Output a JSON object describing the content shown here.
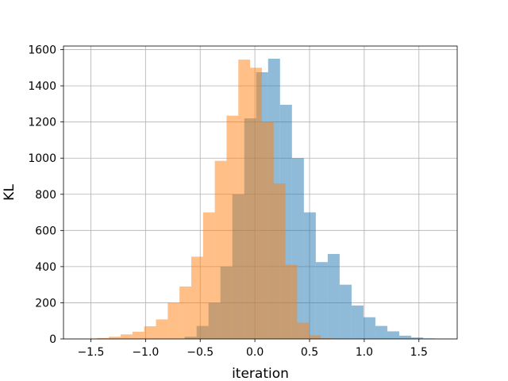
{
  "chart_data": {
    "type": "bar",
    "subtype": "overlaid-histogram",
    "title": "",
    "xlabel": "iteration",
    "ylabel": "KL",
    "xlim": [
      -1.75,
      1.85
    ],
    "ylim": [
      0,
      1620
    ],
    "xticks": [
      -1.5,
      -1.0,
      -0.5,
      0.0,
      0.5,
      1.0,
      1.5
    ],
    "xtick_labels": [
      "−1.5",
      "−1.0",
      "−0.5",
      "0.0",
      "0.5",
      "1.0",
      "1.5"
    ],
    "yticks": [
      0,
      200,
      400,
      600,
      800,
      1000,
      1200,
      1400,
      1600
    ],
    "ytick_labels": [
      "0",
      "200",
      "400",
      "600",
      "800",
      "1000",
      "1200",
      "1400",
      "1600"
    ],
    "grid": true,
    "alpha": 0.5,
    "series": [
      {
        "color": "#1f77b4",
        "bin_width": 0.109,
        "bin_start": -0.642,
        "counts": [
          12,
          72,
          200,
          400,
          800,
          1220,
          1475,
          1550,
          1295,
          1000,
          700,
          425,
          470,
          300,
          185,
          120,
          72,
          42,
          18,
          8,
          3
        ]
      },
      {
        "color": "#ff7f0e",
        "bin_width": 0.1076,
        "bin_start": -1.55,
        "counts": [
          2,
          5,
          12,
          25,
          40,
          70,
          108,
          200,
          290,
          455,
          700,
          985,
          1235,
          1545,
          1500,
          1200,
          860,
          410,
          90,
          20,
          4,
          1
        ]
      }
    ]
  }
}
